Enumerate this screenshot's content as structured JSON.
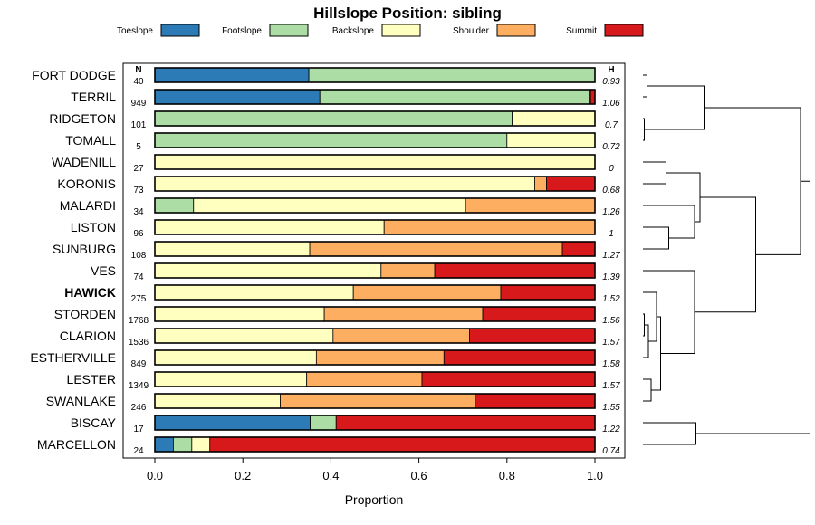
{
  "chart_data": {
    "type": "bar",
    "stacked": true,
    "orientation": "horizontal",
    "title": "Hillslope Position: sibling",
    "xlabel": "Proportion",
    "xlim": [
      0,
      1
    ],
    "xticks": [
      "0.0",
      "0.2",
      "0.4",
      "0.6",
      "0.8",
      "1.0"
    ],
    "n_header": "N",
    "h_header": "H",
    "legend_position": "top",
    "series": [
      {
        "name": "Toeslope",
        "color": "#2c7bb6"
      },
      {
        "name": "Footslope",
        "color": "#abdda4"
      },
      {
        "name": "Backslope",
        "color": "#ffffbf"
      },
      {
        "name": "Shoulder",
        "color": "#fdae61"
      },
      {
        "name": "Summit",
        "color": "#d7191c"
      }
    ],
    "rows": [
      {
        "label": "FORT DODGE",
        "n": "40",
        "h": "0.93",
        "bold": false,
        "values": [
          0.35,
          0.65,
          0,
          0,
          0
        ]
      },
      {
        "label": "TERRIL",
        "n": "949",
        "h": "1.06",
        "bold": false,
        "values": [
          0.375,
          0.612,
          0.003,
          0,
          0.01
        ]
      },
      {
        "label": "RIDGETON",
        "n": "101",
        "h": "0.7",
        "bold": false,
        "values": [
          0,
          0.812,
          0.188,
          0,
          0
        ]
      },
      {
        "label": "TOMALL",
        "n": "5",
        "h": "0.72",
        "bold": false,
        "values": [
          0,
          0.8,
          0.2,
          0,
          0
        ]
      },
      {
        "label": "WADENILL",
        "n": "27",
        "h": "0",
        "bold": false,
        "values": [
          0,
          0,
          1.0,
          0,
          0
        ]
      },
      {
        "label": "KORONIS",
        "n": "73",
        "h": "0.68",
        "bold": false,
        "values": [
          0,
          0,
          0.863,
          0.027,
          0.11
        ]
      },
      {
        "label": "MALARDI",
        "n": "34",
        "h": "1.26",
        "bold": false,
        "values": [
          0,
          0.088,
          0.618,
          0.294,
          0
        ]
      },
      {
        "label": "LISTON",
        "n": "96",
        "h": "1",
        "bold": false,
        "values": [
          0,
          0,
          0.521,
          0.479,
          0
        ]
      },
      {
        "label": "SUNBURG",
        "n": "108",
        "h": "1.27",
        "bold": false,
        "values": [
          0,
          0,
          0.352,
          0.574,
          0.074
        ]
      },
      {
        "label": "VES",
        "n": "74",
        "h": "1.39",
        "bold": false,
        "values": [
          0,
          0,
          0.514,
          0.122,
          0.364
        ]
      },
      {
        "label": "HAWICK",
        "n": "275",
        "h": "1.52",
        "bold": true,
        "values": [
          0,
          0,
          0.451,
          0.335,
          0.214
        ]
      },
      {
        "label": "STORDEN",
        "n": "1768",
        "h": "1.56",
        "bold": false,
        "values": [
          0,
          0,
          0.385,
          0.36,
          0.255
        ]
      },
      {
        "label": "CLARION",
        "n": "1536",
        "h": "1.57",
        "bold": false,
        "values": [
          0,
          0,
          0.405,
          0.31,
          0.285
        ]
      },
      {
        "label": "ESTHERVILLE",
        "n": "849",
        "h": "1.58",
        "bold": false,
        "values": [
          0,
          0,
          0.367,
          0.29,
          0.343
        ]
      },
      {
        "label": "LESTER",
        "n": "1349",
        "h": "1.57",
        "bold": false,
        "values": [
          0,
          0,
          0.345,
          0.262,
          0.393
        ]
      },
      {
        "label": "SWANLAKE",
        "n": "246",
        "h": "1.55",
        "bold": false,
        "values": [
          0,
          0,
          0.285,
          0.443,
          0.272
        ]
      },
      {
        "label": "BISCAY",
        "n": "17",
        "h": "1.22",
        "bold": false,
        "values": [
          0.353,
          0.059,
          0,
          0,
          0.588
        ]
      },
      {
        "label": "MARCELLON",
        "n": "24",
        "h": "0.74",
        "bold": false,
        "values": [
          0.042,
          0.042,
          0.041,
          0,
          0.875
        ]
      }
    ],
    "dendrogram": {
      "merges": [
        {
          "left": "FORT DODGE",
          "right": "TERRIL",
          "height": 0.03
        },
        {
          "left": "RIDGETON",
          "right": "TOMALL",
          "height": 0.01
        },
        {
          "left": "m0",
          "right": "m1",
          "height": 0.45
        },
        {
          "left": "WADENILL",
          "right": "KORONIS",
          "height": 0.17
        },
        {
          "left": "LISTON",
          "right": "SUNBURG",
          "height": 0.19
        },
        {
          "left": "MALARDI",
          "right": "m4",
          "height": 0.38
        },
        {
          "left": "m3",
          "right": "m5",
          "height": 0.42
        },
        {
          "left": "STORDEN",
          "right": "CLARION",
          "height": 0.01
        },
        {
          "left": "m7",
          "right": "ESTHERVILLE",
          "height": 0.04
        },
        {
          "left": "HAWICK",
          "right": "m8",
          "height": 0.1
        },
        {
          "left": "LESTER",
          "right": "SWANLAKE",
          "height": 0.06
        },
        {
          "left": "m9",
          "right": "m10",
          "height": 0.13
        },
        {
          "left": "VES",
          "right": "m11",
          "height": 0.38
        },
        {
          "left": "m6",
          "right": "m12",
          "height": 0.83
        },
        {
          "left": "m2",
          "right": "m13",
          "height": 1.16
        },
        {
          "left": "BISCAY",
          "right": "MARCELLON",
          "height": 0.39
        },
        {
          "left": "m14",
          "right": "m15",
          "height": 1.23
        }
      ]
    }
  }
}
